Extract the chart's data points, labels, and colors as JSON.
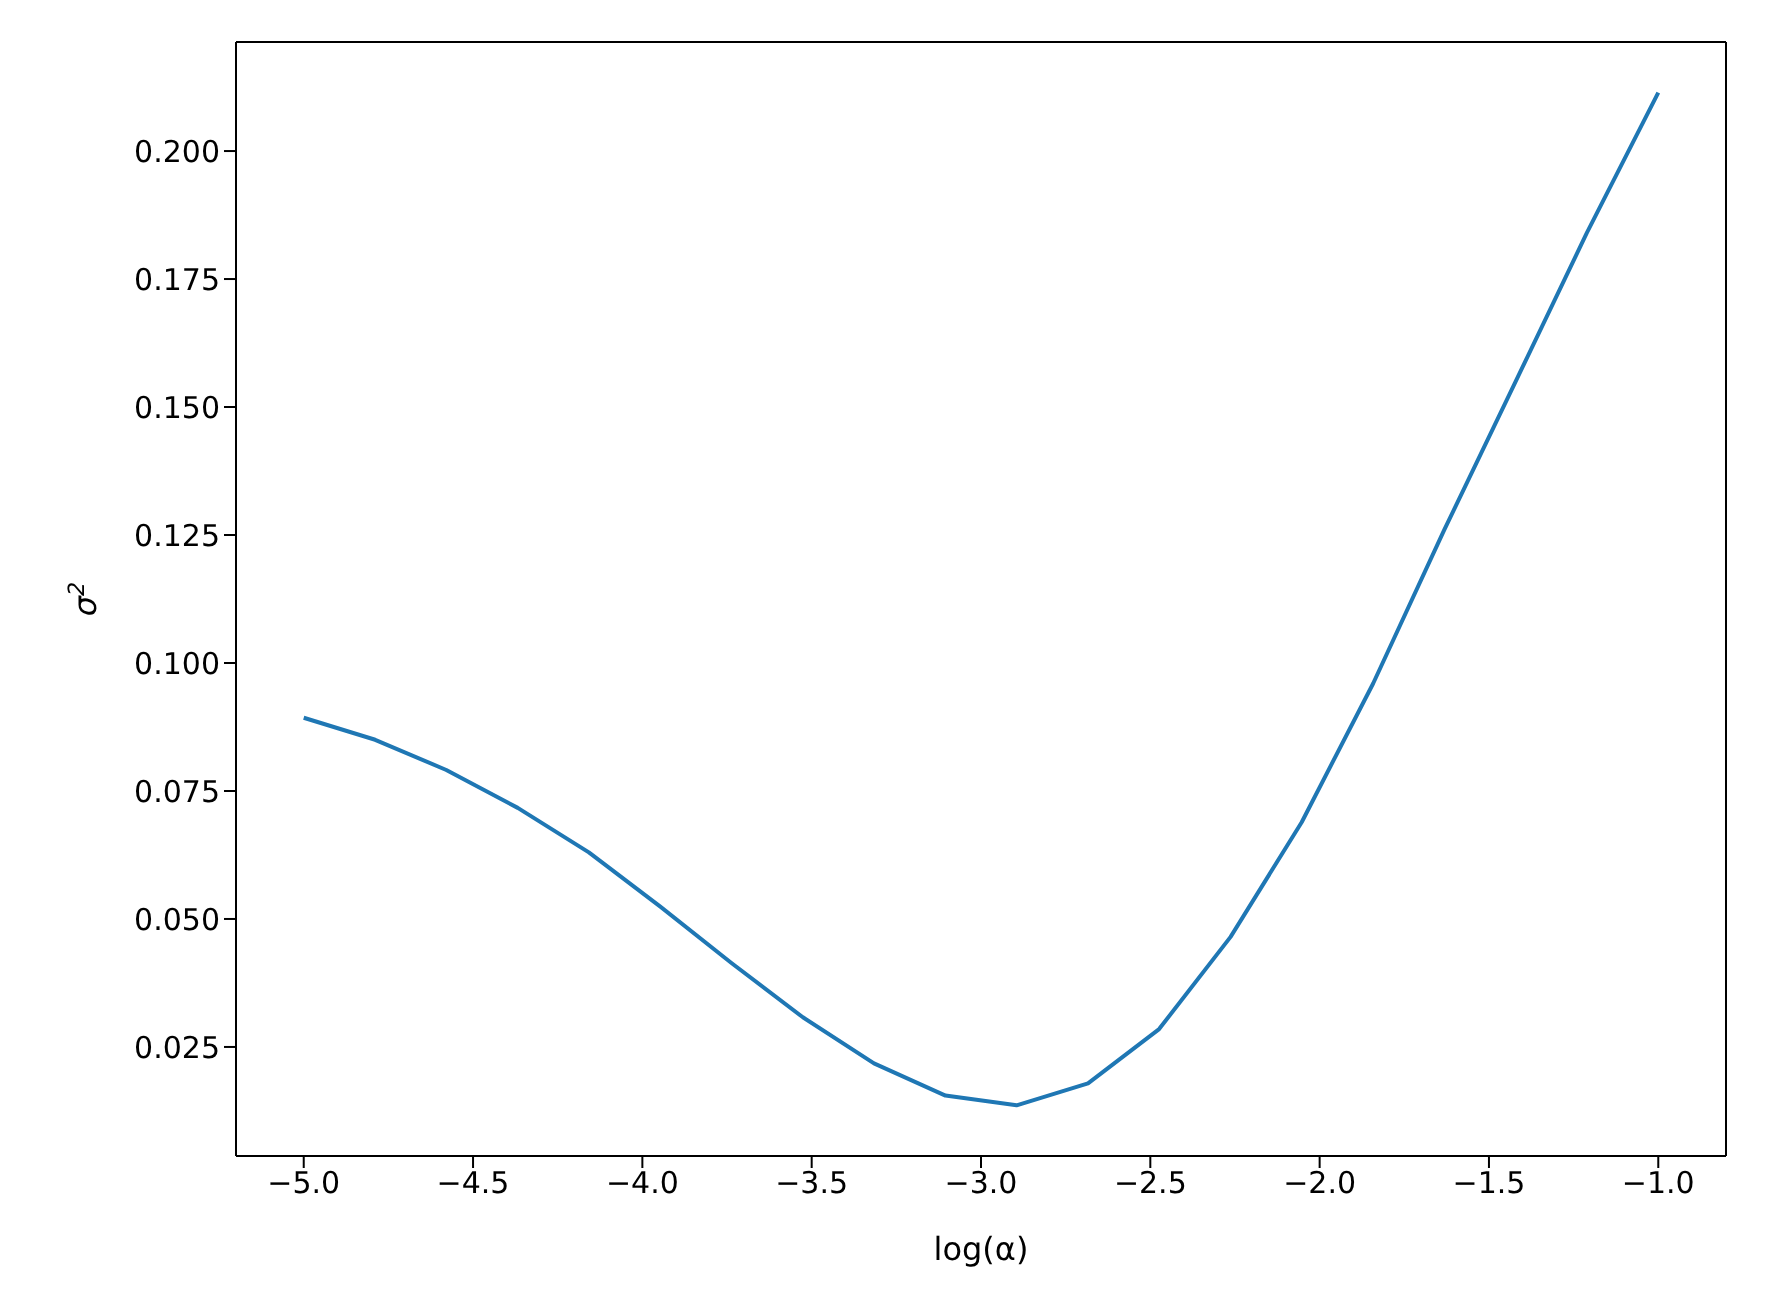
{
  "chart_data": {
    "type": "line",
    "xlabel": "log(α)",
    "ylabel": "σ$^{2}$",
    "x": [
      -5,
      -4.789,
      -4.579,
      -4.368,
      -4.158,
      -3.947,
      -3.737,
      -3.526,
      -3.316,
      -3.105,
      -2.895,
      -2.684,
      -2.474,
      -2.263,
      -2.053,
      -1.842,
      -1.632,
      -1.421,
      -1.211,
      -1
    ],
    "series": [
      {
        "color": "#1f77b4",
        "values": [
          0.0893,
          0.085,
          0.0791,
          0.0717,
          0.063,
          0.0524,
          0.0414,
          0.0308,
          0.0218,
          0.0155,
          0.0136,
          0.0179,
          0.0285,
          0.0465,
          0.0689,
          0.096,
          0.126,
          0.155,
          0.184,
          0.2114
        ]
      }
    ],
    "xlim": [
      -5.2,
      -0.8
    ],
    "xticks": [
      {
        "value": -5,
        "label": "−5.0"
      },
      {
        "value": -4.5,
        "label": "−4.5"
      },
      {
        "value": -4,
        "label": "−4.0"
      },
      {
        "value": -3.5,
        "label": "−3.5"
      },
      {
        "value": -3,
        "label": "−3.0"
      },
      {
        "value": -2.5,
        "label": "−2.5"
      },
      {
        "value": -2,
        "label": "−2.0"
      },
      {
        "value": -1.5,
        "label": "−1.5"
      },
      {
        "value": -1,
        "label": "−1.0"
      }
    ],
    "ylim": [
      0.0037,
      0.2213
    ],
    "yticks": [
      {
        "value": 0.025,
        "label": "0.025"
      },
      {
        "value": 0.05,
        "label": "0.050"
      },
      {
        "value": 0.075,
        "label": "0.075"
      },
      {
        "value": 0.1,
        "label": "0.100"
      },
      {
        "value": 0.125,
        "label": "0.125"
      },
      {
        "value": 0.15,
        "label": "0.150"
      },
      {
        "value": 0.175,
        "label": "0.175"
      },
      {
        "value": 0.2,
        "label": "0.200"
      }
    ],
    "grid": false,
    "legend": false,
    "marker": "none",
    "line_style": "solid"
  }
}
